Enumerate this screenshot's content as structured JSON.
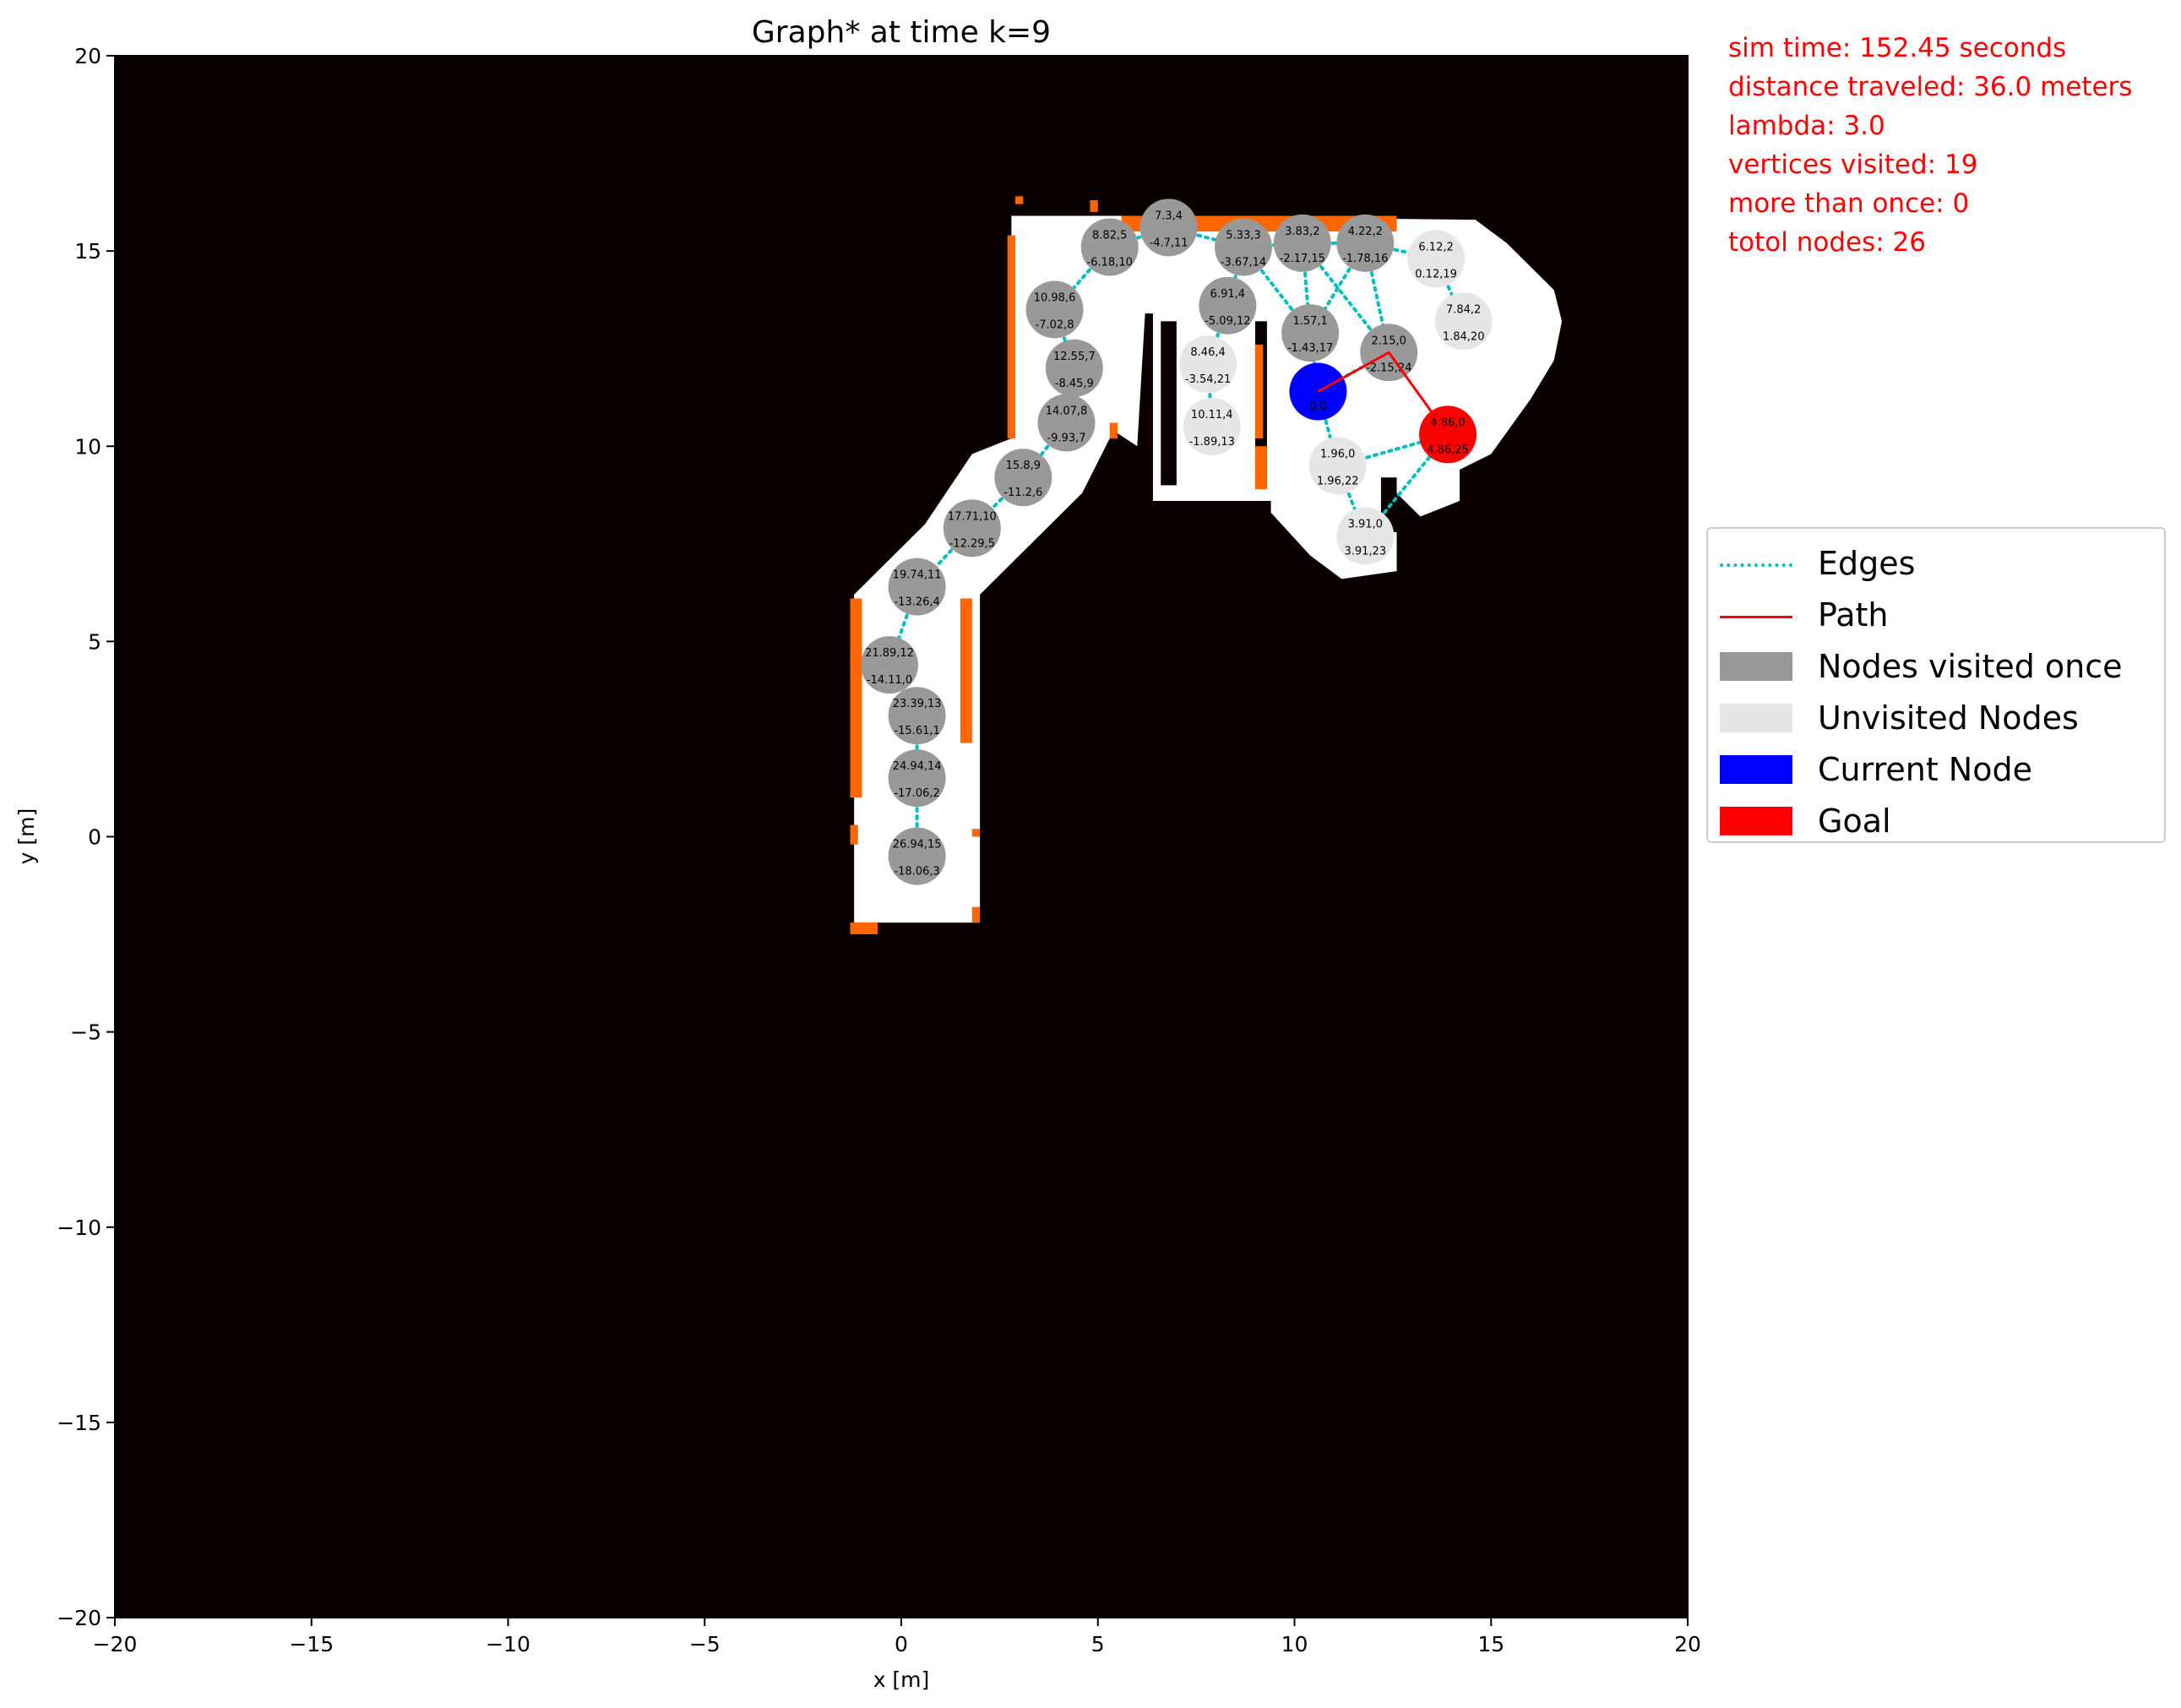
{
  "chart_data": {
    "type": "scatter",
    "title": "Graph* at time k=9",
    "xlabel": "x [m]",
    "ylabel": "y [m]",
    "xlim": [
      -20,
      20
    ],
    "ylim": [
      -20,
      20
    ],
    "xticks": [
      "−20",
      "−15",
      "−10",
      "−5",
      "0",
      "5",
      "10",
      "15",
      "20"
    ],
    "yticks": [
      "−20",
      "−15",
      "−10",
      "−5",
      "0",
      "5",
      "10",
      "15",
      "20"
    ],
    "xtick_values": [
      -20,
      -15,
      -10,
      -5,
      0,
      5,
      10,
      15,
      20
    ],
    "ytick_values": [
      -20,
      -15,
      -10,
      -5,
      0,
      5,
      10,
      15,
      20
    ],
    "grid": false,
    "legend_position": "right",
    "colors": {
      "background": "#0a0000",
      "free_space": "#ffffff",
      "frontier": "#ff6600",
      "edges": "#00bfbf",
      "path": "#ff0000",
      "visited": "#999999",
      "unvisited": "#e6e6e6",
      "current": "#0000ff",
      "goal": "#ff0000"
    },
    "nodes": [
      {
        "x": 6.8,
        "y": 15.6,
        "l1": "7.3,4",
        "l2": "-4.7,11",
        "type": "visited"
      },
      {
        "x": 5.3,
        "y": 15.1,
        "l1": "8.82,5",
        "l2": "-6.18,10",
        "type": "visited"
      },
      {
        "x": 3.9,
        "y": 13.5,
        "l1": "10.98,6",
        "l2": "-7.02,8",
        "type": "visited"
      },
      {
        "x": 4.4,
        "y": 12.0,
        "l1": "12.55,7",
        "l2": "-8.45,9",
        "type": "visited"
      },
      {
        "x": 4.2,
        "y": 10.6,
        "l1": "14.07,8",
        "l2": "-9.93,7",
        "type": "visited"
      },
      {
        "x": 3.1,
        "y": 9.2,
        "l1": "15.8,9",
        "l2": "-11.2,6",
        "type": "visited"
      },
      {
        "x": 1.8,
        "y": 7.9,
        "l1": "17.71,10",
        "l2": "-12.29,5",
        "type": "visited"
      },
      {
        "x": 0.4,
        "y": 6.4,
        "l1": "19.74,11",
        "l2": "-13.26,4",
        "type": "visited"
      },
      {
        "x": -0.3,
        "y": 4.4,
        "l1": "21.89,12",
        "l2": "-14.11,0",
        "type": "visited"
      },
      {
        "x": 0.4,
        "y": 3.1,
        "l1": "23.39,13",
        "l2": "-15.61,1",
        "type": "visited"
      },
      {
        "x": 0.4,
        "y": 1.5,
        "l1": "24.94,14",
        "l2": "-17.06,2",
        "type": "visited"
      },
      {
        "x": 0.4,
        "y": -0.5,
        "l1": "26.94,15",
        "l2": "-18.06,3",
        "type": "visited"
      },
      {
        "x": 8.7,
        "y": 15.1,
        "l1": "5.33,3",
        "l2": "-3.67,14",
        "type": "visited"
      },
      {
        "x": 10.2,
        "y": 15.2,
        "l1": "3.83,2",
        "l2": "-2.17,15",
        "type": "visited"
      },
      {
        "x": 11.8,
        "y": 15.2,
        "l1": "4.22,2",
        "l2": "-1.78,16",
        "type": "visited"
      },
      {
        "x": 8.3,
        "y": 13.6,
        "l1": "6.91,4",
        "l2": "-5.09,12",
        "type": "visited"
      },
      {
        "x": 10.4,
        "y": 12.9,
        "l1": "1.57,1",
        "l2": "-1.43,17",
        "type": "visited"
      },
      {
        "x": 12.4,
        "y": 12.4,
        "l1": "2.15,0",
        "l2": "-2.15,24",
        "type": "visited"
      },
      {
        "x": 13.6,
        "y": 14.8,
        "l1": "6.12,2",
        "l2": "0.12,19",
        "type": "unvisited"
      },
      {
        "x": 14.3,
        "y": 13.2,
        "l1": "7.84,2",
        "l2": "1.84,20",
        "type": "unvisited"
      },
      {
        "x": 7.8,
        "y": 12.1,
        "l1": "8.46,4",
        "l2": "-3.54,21",
        "type": "unvisited"
      },
      {
        "x": 7.9,
        "y": 10.5,
        "l1": "10.11,4",
        "l2": "-1.89,13",
        "type": "unvisited"
      },
      {
        "x": 11.1,
        "y": 9.5,
        "l1": "1.96,0",
        "l2": "1.96,22",
        "type": "unvisited"
      },
      {
        "x": 11.8,
        "y": 7.7,
        "l1": "3.91,0",
        "l2": "3.91,23",
        "type": "unvisited"
      },
      {
        "x": 10.6,
        "y": 11.4,
        "l1": "",
        "l2": "0.0",
        "type": "current"
      },
      {
        "x": 13.9,
        "y": 10.3,
        "l1": "4.86,0",
        "l2": "4.86,25",
        "type": "goal"
      }
    ],
    "edges": [
      [
        0,
        1
      ],
      [
        1,
        2
      ],
      [
        2,
        3
      ],
      [
        3,
        4
      ],
      [
        4,
        5
      ],
      [
        5,
        6
      ],
      [
        6,
        7
      ],
      [
        7,
        8
      ],
      [
        8,
        9
      ],
      [
        9,
        10
      ],
      [
        10,
        11
      ],
      [
        0,
        12
      ],
      [
        12,
        13
      ],
      [
        13,
        14
      ],
      [
        14,
        18
      ],
      [
        18,
        19
      ],
      [
        12,
        15
      ],
      [
        15,
        20
      ],
      [
        20,
        21
      ],
      [
        12,
        16
      ],
      [
        16,
        24
      ],
      [
        13,
        16
      ],
      [
        14,
        16
      ],
      [
        14,
        17
      ],
      [
        13,
        17
      ],
      [
        17,
        24
      ],
      [
        24,
        22
      ],
      [
        22,
        23
      ],
      [
        22,
        25
      ],
      [
        23,
        25
      ]
    ],
    "path": [
      [
        10.6,
        11.4
      ],
      [
        12.4,
        12.4
      ],
      [
        13.9,
        10.3
      ]
    ],
    "legend": [
      "Edges",
      "Path",
      "Nodes visited once",
      "Unvisited Nodes",
      "Current Node",
      "Goal"
    ]
  },
  "stats": [
    "sim time: 152.45 seconds",
    "distance traveled: 36.0 meters",
    "lambda: 3.0",
    "vertices visited: 19",
    "more than once: 0",
    "totol nodes: 26"
  ]
}
